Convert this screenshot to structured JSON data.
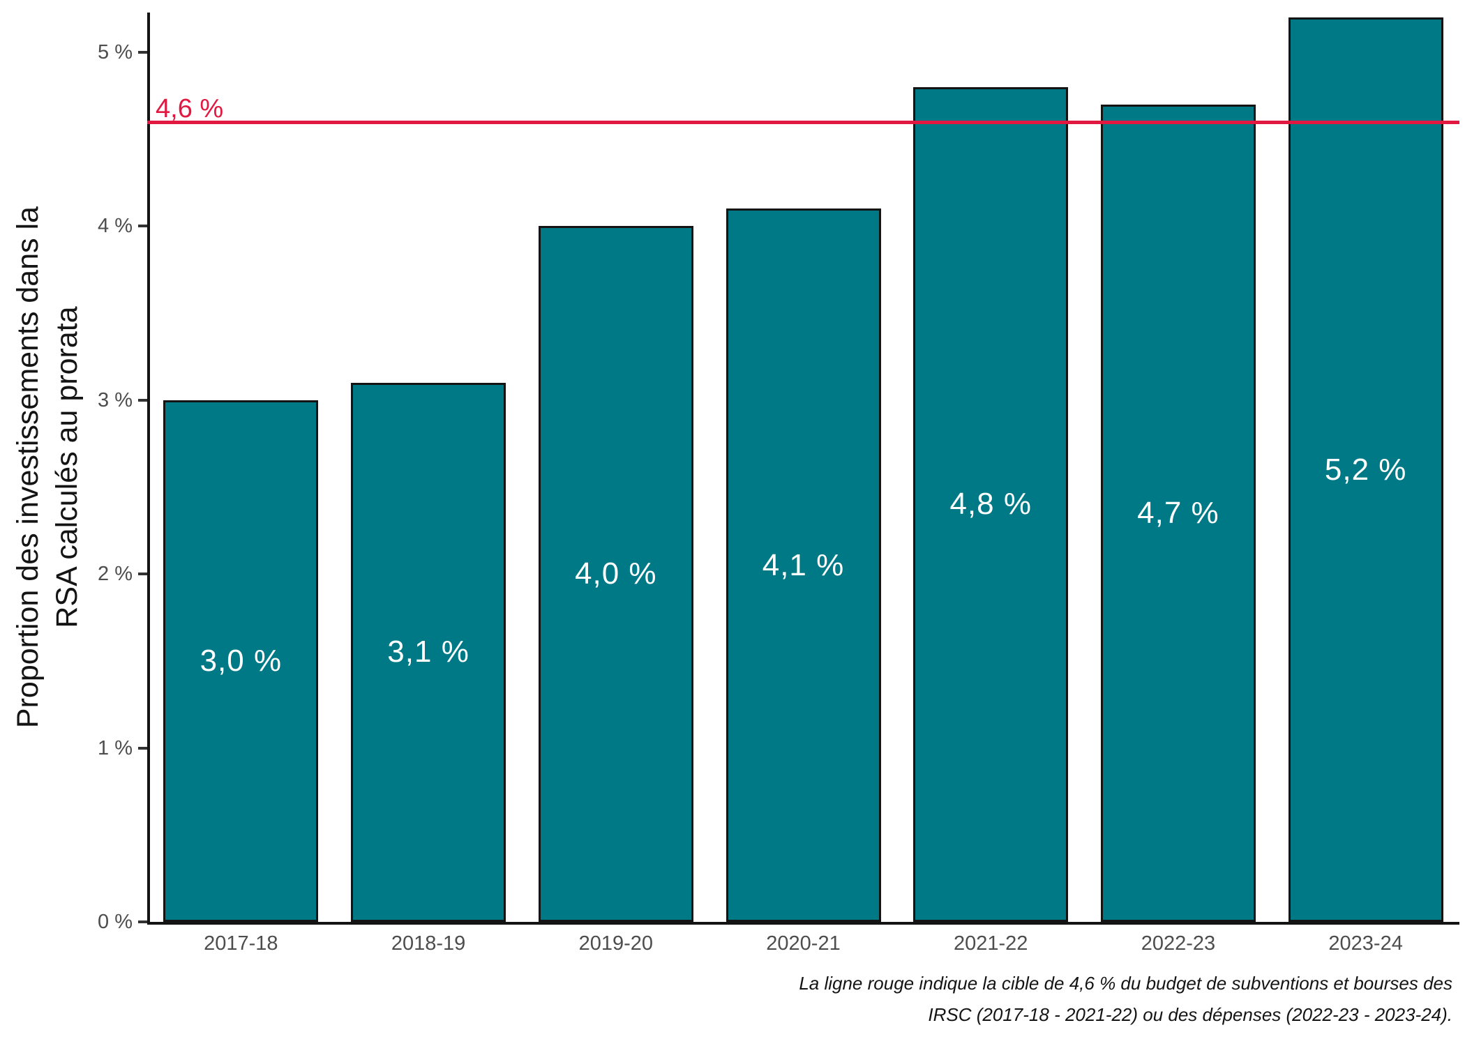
{
  "chart_data": {
    "type": "bar",
    "title": "",
    "ylabel_lines": [
      "Proportion des investissements dans la",
      "RSA calculés au prorata"
    ],
    "xlabel": "",
    "categories": [
      "2017-18",
      "2018-19",
      "2019-20",
      "2020-21",
      "2021-22",
      "2022-23",
      "2023-24"
    ],
    "values": [
      3.0,
      3.1,
      4.0,
      4.1,
      4.8,
      4.7,
      5.2
    ],
    "bar_labels": [
      "3,0 %",
      "3,1 %",
      "4,0 %",
      "4,1 %",
      "4,8 %",
      "4,7 %",
      "5,2 %"
    ],
    "y_ticks": [
      {
        "value": 0,
        "label": "0 %"
      },
      {
        "value": 1,
        "label": "1 %"
      },
      {
        "value": 2,
        "label": "2 %"
      },
      {
        "value": 3,
        "label": "3 %"
      },
      {
        "value": 4,
        "label": "4 %"
      },
      {
        "value": 5,
        "label": "5 %"
      }
    ],
    "ylim": [
      0,
      5.22
    ],
    "grid": false,
    "legend": "none",
    "reference_line": {
      "value": 4.6,
      "label": "4,6 %"
    },
    "caption_lines": [
      "La ligne rouge indique la cible de 4,6 % du budget de subventions et bourses des",
      "IRSC (2017-18 - 2021-22) ou des dépenses (2022-23 - 2023-24)."
    ],
    "colors": {
      "bar_fill": "#007986",
      "bar_border": "#141414",
      "reference": "#E1183F",
      "axis": "#141414",
      "tick_text": "#4D4D4D",
      "bar_label_text": "#FFFFFF"
    }
  }
}
